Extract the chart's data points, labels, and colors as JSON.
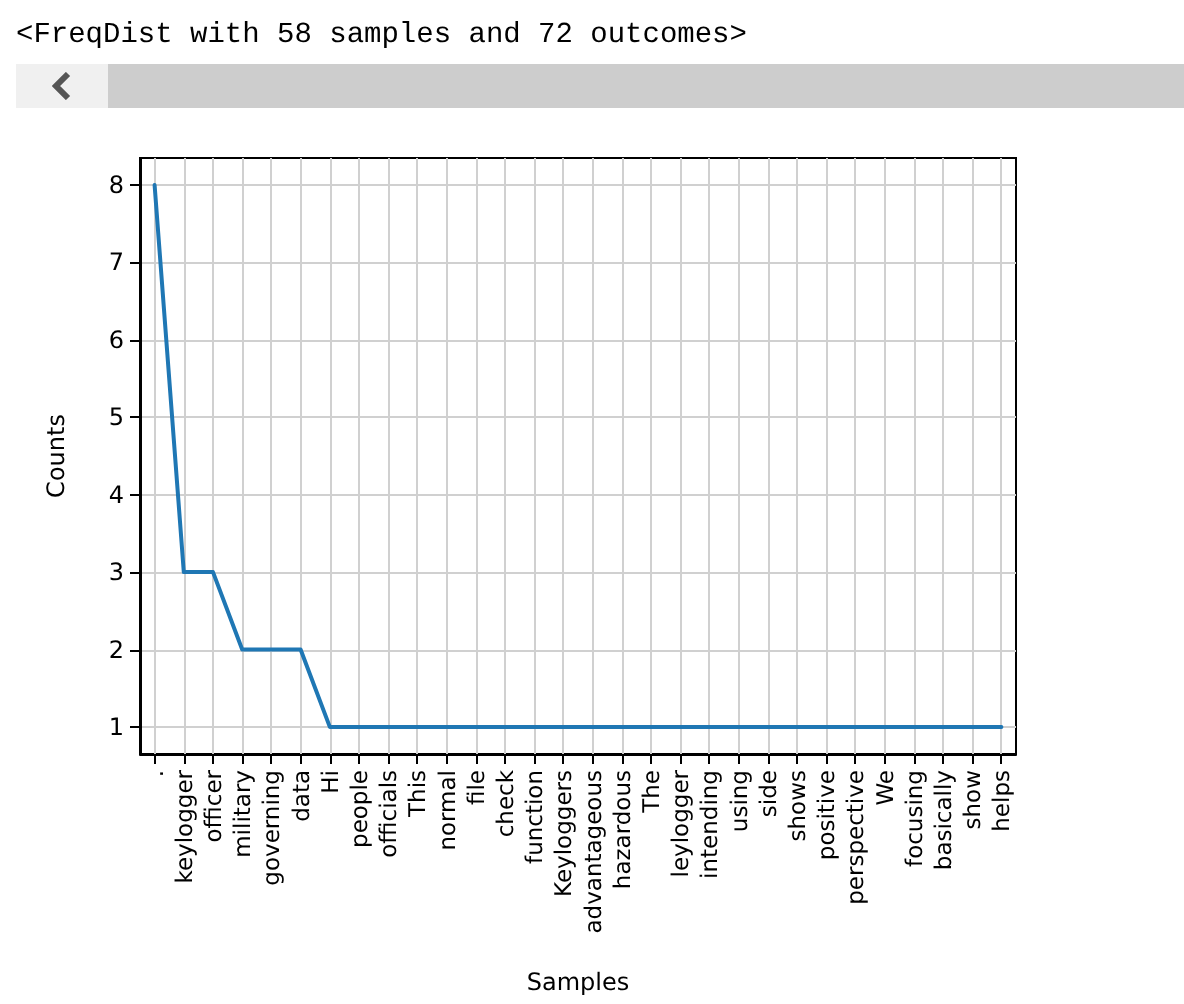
{
  "chart_data": {
    "type": "line",
    "title": "<FreqDist with 58 samples and 72 outcomes>",
    "xlabel": "Samples",
    "ylabel": "Counts",
    "categories": [
      ".",
      "keylogger",
      "officer",
      "military",
      "governing",
      "data",
      "Hi",
      "people",
      "officials",
      "This",
      "normal",
      "file",
      "check",
      "function",
      "Keyloggers",
      "advantageous",
      "hazardous",
      "The",
      "leylogger",
      "intending",
      "using",
      "side",
      "shows",
      "positive",
      "perspective",
      "We",
      "focusing",
      "basically",
      "show",
      "helps"
    ],
    "series": [
      {
        "color": "#1f77b4",
        "values": [
          8,
          3,
          3,
          2,
          2,
          2,
          1,
          1,
          1,
          1,
          1,
          1,
          1,
          1,
          1,
          1,
          1,
          1,
          1,
          1,
          1,
          1,
          1,
          1,
          1,
          1,
          1,
          1,
          1,
          1
        ]
      }
    ],
    "ylim": [
      0.65,
      8.35
    ],
    "yticks": [
      1,
      2,
      3,
      4,
      5,
      6,
      7,
      8
    ],
    "grid": true,
    "marker": "none",
    "line_style": "solid"
  }
}
